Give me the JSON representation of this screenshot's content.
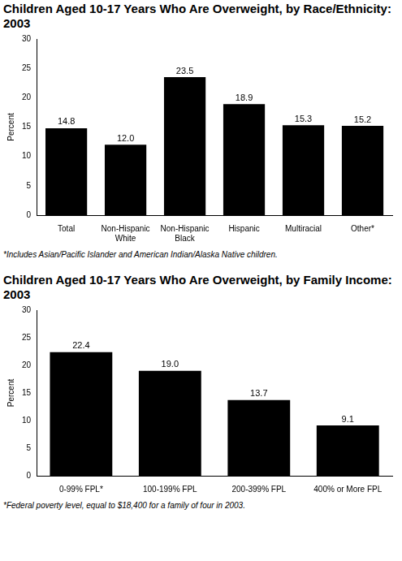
{
  "chart_data": [
    {
      "type": "bar",
      "title": "Children Aged 10-17 Years Who Are Overweight, by Race/Ethnicity: 2003",
      "y_label": "Percent",
      "categories": [
        "Total",
        [
          "Non-Hispanic",
          "White"
        ],
        [
          "Non-Hispanic",
          "Black"
        ],
        "Hispanic",
        "Multiracial",
        "Other*"
      ],
      "values": [
        14.8,
        12.0,
        23.5,
        18.9,
        15.3,
        15.2
      ],
      "value_labels": [
        "14.8",
        "12.0",
        "23.5",
        "18.9",
        "15.3",
        "15.2"
      ],
      "color": "#000000",
      "ylim": [
        0,
        30
      ],
      "yticks": [
        0,
        5,
        10,
        15,
        20,
        25,
        30
      ],
      "grid": false,
      "data_labels": true,
      "footnote": "*Includes Asian/Pacific Islander and American Indian/Alaska Native children."
    },
    {
      "type": "bar",
      "title": "Children Aged 10-17 Years Who Are Overweight, by Family Income: 2003",
      "y_label": "Percent",
      "categories": [
        "0-99% FPL*",
        "100-199% FPL",
        "200-399% FPL",
        "400% or More FPL"
      ],
      "values": [
        22.4,
        19.0,
        13.7,
        9.1
      ],
      "value_labels": [
        "22.4",
        "19.0",
        "13.7",
        "9.1"
      ],
      "color": "#000000",
      "ylim": [
        0,
        30
      ],
      "yticks": [
        0,
        5,
        10,
        15,
        20,
        25,
        30
      ],
      "grid": false,
      "data_labels": true,
      "footnote": "*Federal poverty level, equal to $18,400 for a family of four in 2003."
    }
  ]
}
